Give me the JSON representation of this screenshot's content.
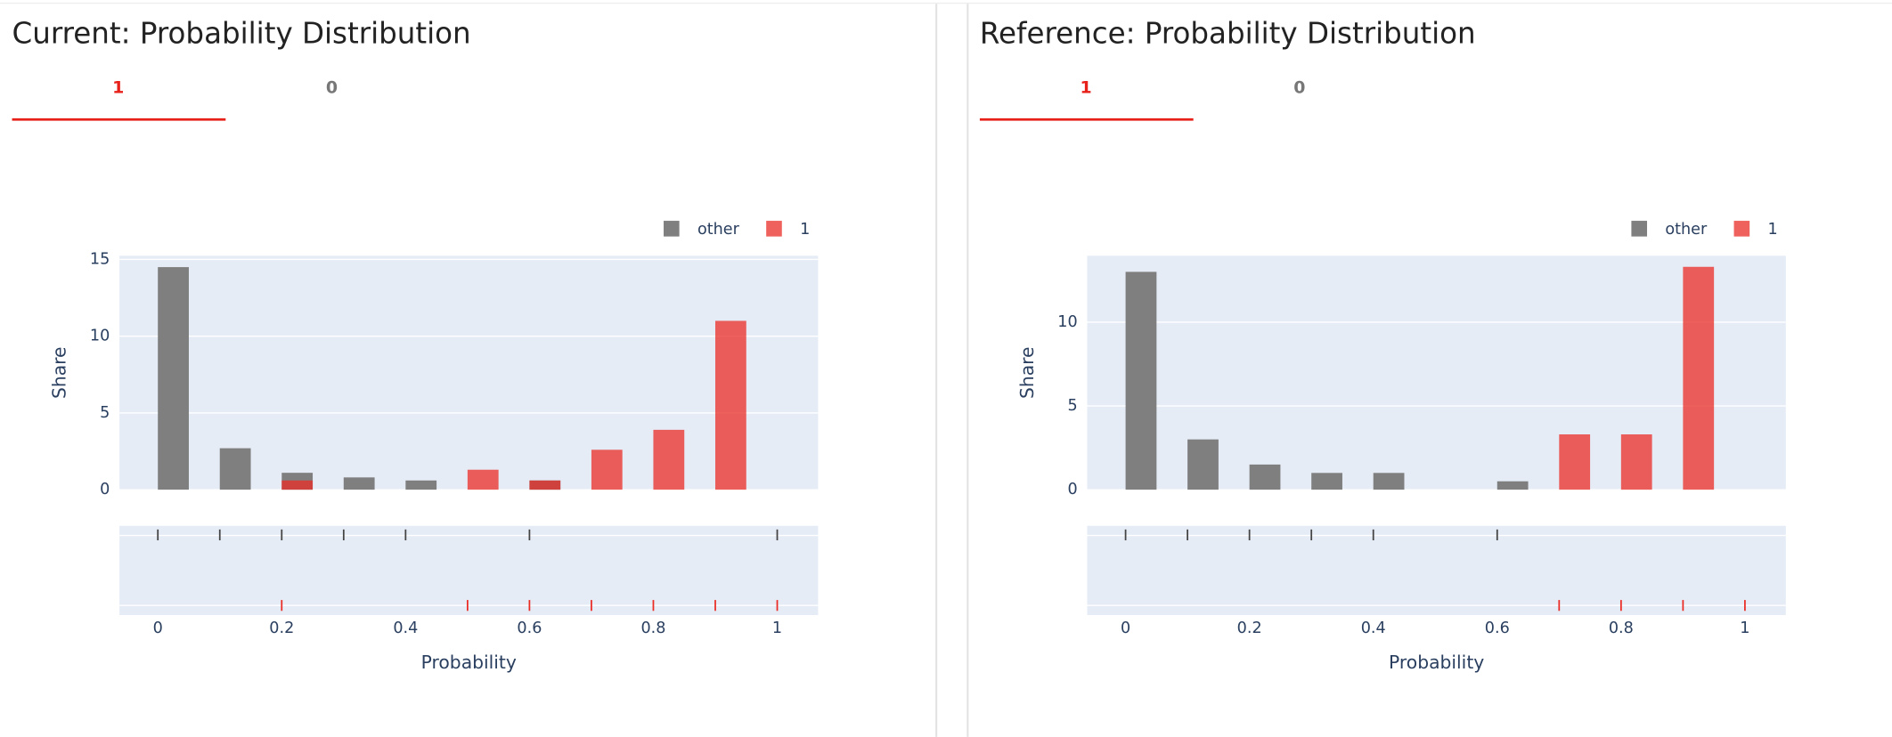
{
  "chart_data": [
    {
      "title": "Current: Probability Distribution",
      "tabs": [
        "1",
        "0"
      ],
      "type": "histogram",
      "bins": [
        0,
        0.05,
        0.1,
        0.15,
        0.2,
        0.25,
        0.3,
        0.35,
        0.4,
        0.45,
        0.5,
        0.55,
        0.6,
        0.65,
        0.7,
        0.75,
        0.8,
        0.85,
        0.9,
        0.95,
        1.0
      ],
      "series": [
        {
          "name": "other",
          "color": "#7f7f7f",
          "values": [
            14.5,
            0,
            2.7,
            0,
            1.1,
            0,
            0.8,
            0,
            0.6,
            0,
            0,
            0,
            0.6,
            0,
            0,
            0,
            0,
            0,
            0,
            0
          ],
          "rug": [
            0,
            0.1,
            0.2,
            0.3,
            0.4,
            0.6,
            1
          ]
        },
        {
          "name": "1",
          "color": "#ea2c25",
          "values": [
            0,
            0,
            0,
            0,
            0.6,
            0,
            0,
            0,
            0,
            0,
            1.3,
            0,
            0.6,
            0,
            2.6,
            0,
            3.9,
            0,
            11.0,
            0
          ],
          "rug": [
            0.2,
            0.5,
            0.6,
            0.7,
            0.8,
            0.9,
            1
          ]
        }
      ],
      "xlim": [
        -0.062,
        1.066
      ],
      "xticks": [
        0,
        0.2,
        0.4,
        0.6,
        0.8,
        1
      ],
      "ylim": [
        0,
        15.24
      ],
      "yticks": [
        0,
        5,
        10,
        15
      ],
      "x_label": "Probability",
      "y_label": "Share",
      "legend": "top-right",
      "grid": true
    },
    {
      "title": "Reference: Probability Distribution",
      "tabs": [
        "1",
        "0"
      ],
      "type": "histogram",
      "bins": [
        0,
        0.05,
        0.1,
        0.15,
        0.2,
        0.25,
        0.3,
        0.35,
        0.4,
        0.45,
        0.5,
        0.55,
        0.6,
        0.65,
        0.7,
        0.75,
        0.8,
        0.85,
        0.9,
        0.95,
        1.0
      ],
      "series": [
        {
          "name": "other",
          "color": "#7f7f7f",
          "values": [
            13.0,
            0,
            3.0,
            0,
            1.5,
            0,
            1.0,
            0,
            1.0,
            0,
            0,
            0,
            0.5,
            0,
            0,
            0,
            0,
            0,
            0,
            0
          ],
          "rug": [
            0,
            0.1,
            0.2,
            0.3,
            0.4,
            0.6
          ]
        },
        {
          "name": "1",
          "color": "#ea2c25",
          "values": [
            0,
            0,
            0,
            0,
            0,
            0,
            0,
            0,
            0,
            0,
            0,
            0,
            0,
            0,
            3.3,
            0,
            3.3,
            0,
            13.3,
            0
          ],
          "rug": [
            0.7,
            0.8,
            0.9,
            1
          ]
        }
      ],
      "xlim": [
        -0.062,
        1.066
      ],
      "xticks": [
        0,
        0.2,
        0.4,
        0.6,
        0.8,
        1
      ],
      "ylim": [
        0,
        13.96
      ],
      "yticks": [
        0,
        5,
        10
      ],
      "x_label": "Probability",
      "y_label": "Share",
      "legend": "top-right",
      "grid": true
    }
  ]
}
